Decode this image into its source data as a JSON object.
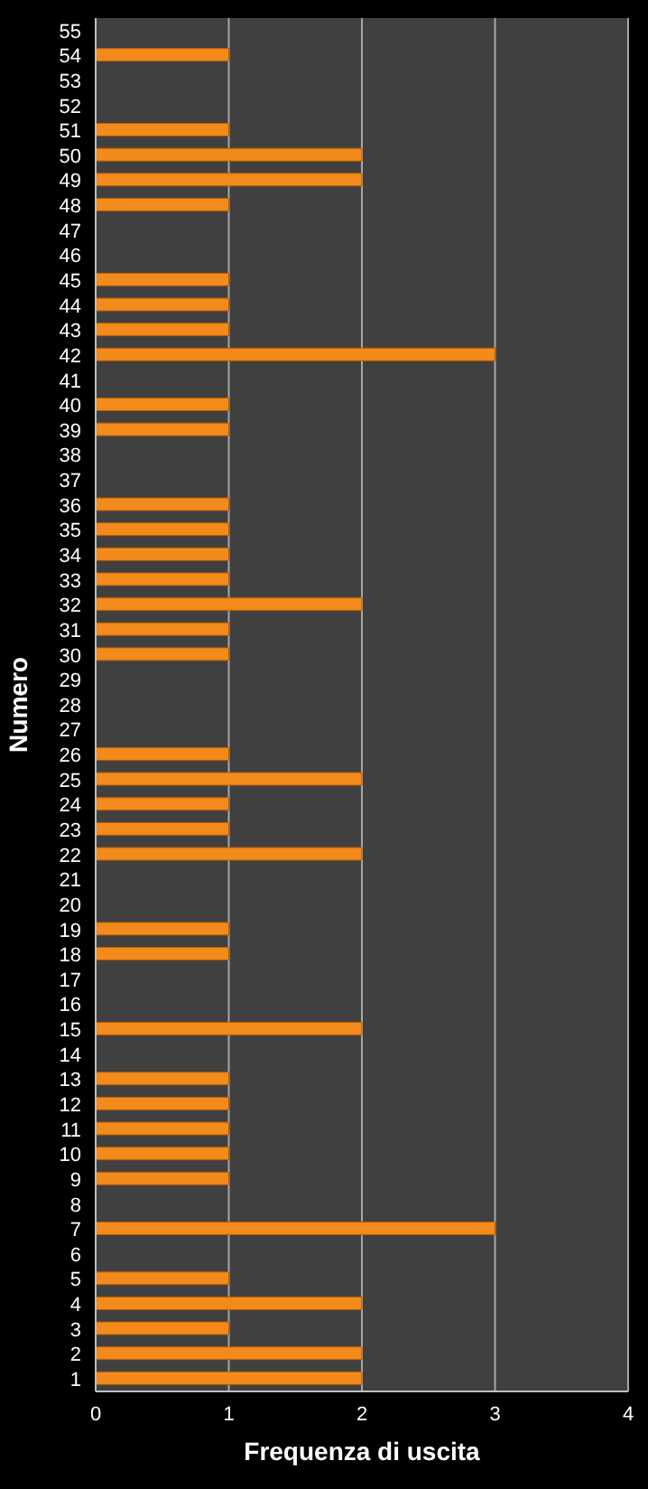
{
  "chart_data": {
    "type": "bar",
    "orientation": "horizontal",
    "xlabel": "Frequenza di uscita",
    "ylabel": "Numero",
    "categories": [
      "55",
      "54",
      "53",
      "52",
      "51",
      "50",
      "49",
      "48",
      "47",
      "46",
      "45",
      "44",
      "43",
      "42",
      "41",
      "40",
      "39",
      "38",
      "37",
      "36",
      "35",
      "34",
      "33",
      "32",
      "31",
      "30",
      "29",
      "28",
      "27",
      "26",
      "25",
      "24",
      "23",
      "22",
      "21",
      "20",
      "19",
      "18",
      "17",
      "16",
      "15",
      "14",
      "13",
      "12",
      "11",
      "10",
      "9",
      "8",
      "7",
      "6",
      "5",
      "4",
      "3",
      "2",
      "1"
    ],
    "values": [
      0,
      1,
      0,
      0,
      1,
      2,
      2,
      1,
      0,
      0,
      1,
      1,
      1,
      3,
      0,
      1,
      1,
      0,
      0,
      1,
      1,
      1,
      1,
      2,
      1,
      1,
      0,
      0,
      0,
      1,
      2,
      1,
      1,
      2,
      0,
      0,
      1,
      1,
      0,
      0,
      2,
      0,
      1,
      1,
      1,
      1,
      1,
      0,
      3,
      0,
      1,
      2,
      1,
      2,
      2
    ],
    "color": "#f28a1c",
    "xlim": [
      0,
      4
    ],
    "xticks": [
      0,
      1,
      2,
      3,
      4
    ],
    "grid": "x",
    "legend": false
  }
}
